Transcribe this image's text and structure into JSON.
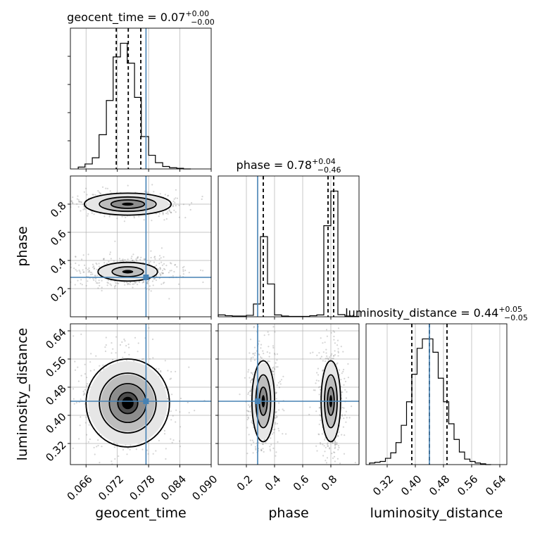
{
  "chart_data": {
    "type": "corner",
    "parameters": [
      "geocent_time",
      "phase",
      "luminosity_distance"
    ],
    "colors": {
      "truth": "#4682b4",
      "histogram": "#000000",
      "points": "#888888",
      "density": "#000000"
    },
    "truths": {
      "geocent_time": 0.0775,
      "phase": 0.28,
      "luminosity_distance": 0.44
    },
    "titles": [
      {
        "param": "geocent_time",
        "text": "geocent_time = 0.07",
        "sup": "+0.00",
        "sub": "−0.00"
      },
      {
        "param": "phase",
        "text": "phase = 0.78",
        "sup": "+0.04",
        "sub": "−0.46"
      },
      {
        "param": "luminosity_distance",
        "text": "luminosity_distance = 0.44",
        "sup": "+0.05",
        "sub": "−0.05"
      }
    ],
    "axes": {
      "geocent_time": {
        "label": "geocent_time",
        "range": [
          0.063,
          0.09
        ],
        "ticks": [
          0.066,
          0.072,
          0.078,
          0.084,
          0.09
        ],
        "tick_labels": [
          "0.066",
          "0.072",
          "0.078",
          "0.084",
          "0.090"
        ]
      },
      "phase": {
        "label": "phase",
        "range": [
          0.0,
          1.0
        ],
        "ticks": [
          0.2,
          0.4,
          0.6,
          0.8
        ],
        "tick_labels": [
          "0.2",
          "0.4",
          "0.6",
          "0.8"
        ]
      },
      "luminosity_distance": {
        "label": "luminosity_distance",
        "range": [
          0.26,
          0.66
        ],
        "ticks": [
          0.32,
          0.4,
          0.48,
          0.56,
          0.64
        ],
        "tick_labels": [
          "0.32",
          "0.40",
          "0.48",
          "0.56",
          "0.64"
        ]
      }
    },
    "histograms": [
      {
        "param": "geocent_time",
        "bins": [
          0.0645,
          0.0658,
          0.0672,
          0.0685,
          0.0699,
          0.0712,
          0.0726,
          0.0739,
          0.0753,
          0.0766,
          0.078,
          0.0793,
          0.0807,
          0.082,
          0.0834,
          0.0847,
          0.0861
        ],
        "counts": [
          3,
          8,
          18,
          55,
          110,
          180,
          202,
          170,
          115,
          52,
          22,
          10,
          4,
          2,
          1,
          0
        ],
        "quantiles": [
          0.0718,
          0.0741,
          0.0765
        ]
      },
      {
        "param": "phase",
        "bins": [
          0.0,
          0.05,
          0.1,
          0.15,
          0.2,
          0.25,
          0.3,
          0.35,
          0.4,
          0.45,
          0.5,
          0.55,
          0.6,
          0.65,
          0.7,
          0.75,
          0.8,
          0.85,
          0.9,
          0.95,
          1.0
        ],
        "counts": [
          5,
          3,
          2,
          2,
          4,
          35,
          220,
          90,
          5,
          2,
          1,
          1,
          1,
          3,
          5,
          250,
          345,
          6,
          2,
          1
        ],
        "quantiles": [
          0.32,
          0.78,
          0.82
        ]
      },
      {
        "param": "luminosity_distance",
        "bins": [
          0.27,
          0.285,
          0.3,
          0.315,
          0.33,
          0.345,
          0.36,
          0.375,
          0.39,
          0.405,
          0.42,
          0.435,
          0.45,
          0.465,
          0.48,
          0.495,
          0.51,
          0.525,
          0.54,
          0.555,
          0.57,
          0.585,
          0.6,
          0.615
        ],
        "counts": [
          2,
          3,
          4,
          8,
          15,
          28,
          50,
          80,
          115,
          148,
          160,
          160,
          143,
          110,
          80,
          52,
          32,
          16,
          7,
          4,
          2,
          1,
          0
        ],
        "quantiles": [
          0.39,
          0.44,
          0.49
        ]
      }
    ],
    "density_modes": [
      {
        "x": "geocent_time",
        "y": "phase",
        "center": [
          0.074,
          0.8
        ],
        "spread": [
          0.0032,
          0.03
        ],
        "levels": [
          1.0,
          1.7,
          2.6
        ]
      },
      {
        "x": "geocent_time",
        "y": "phase",
        "center": [
          0.074,
          0.32
        ],
        "spread": [
          0.003,
          0.035
        ],
        "levels": [
          1.0,
          1.9
        ]
      },
      {
        "x": "geocent_time",
        "y": "luminosity_distance",
        "center": [
          0.074,
          0.435
        ],
        "spread": [
          0.0032,
          0.05
        ],
        "levels": [
          0.6,
          1.1,
          1.7,
          2.5
        ]
      },
      {
        "x": "phase",
        "y": "luminosity_distance",
        "center": [
          0.32,
          0.44
        ],
        "spread": [
          0.035,
          0.05
        ],
        "levels": [
          0.8,
          1.5,
          2.3
        ]
      },
      {
        "x": "phase",
        "y": "luminosity_distance",
        "center": [
          0.8,
          0.44
        ],
        "spread": [
          0.03,
          0.05
        ],
        "levels": [
          0.8,
          1.5,
          2.3
        ]
      }
    ]
  }
}
